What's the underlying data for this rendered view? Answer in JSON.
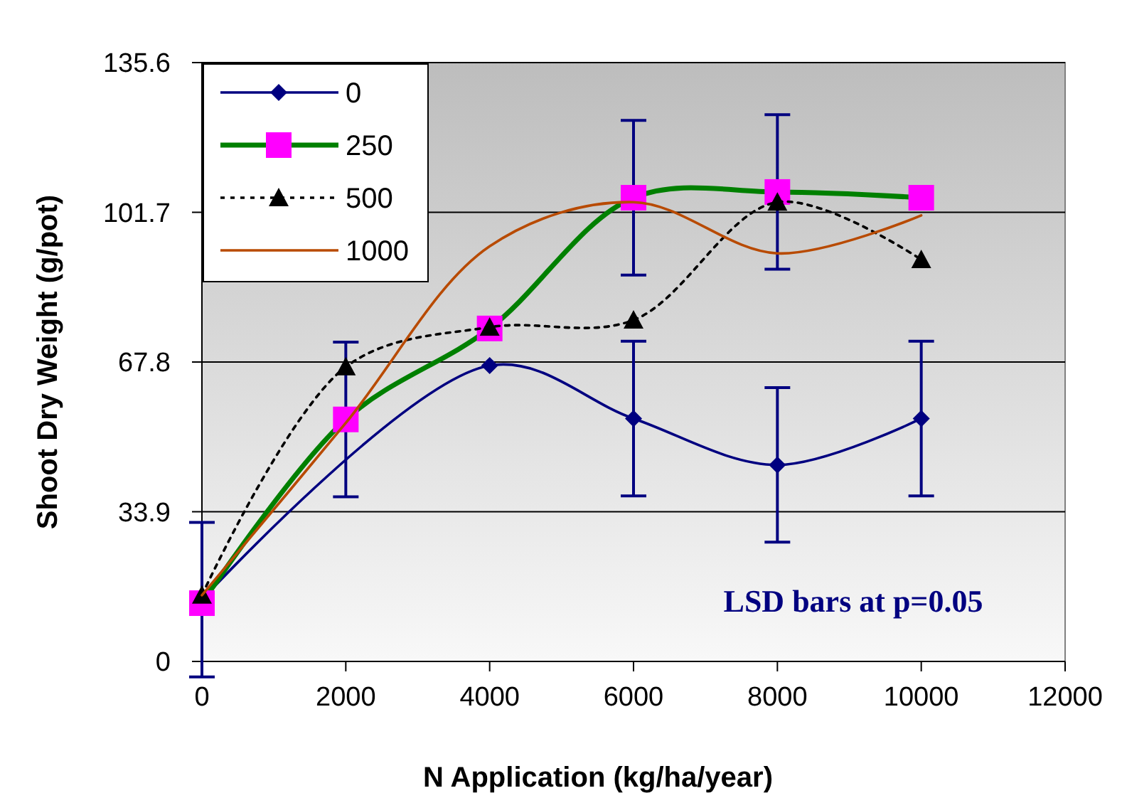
{
  "chart_data": {
    "type": "line",
    "xlabel": "N Application (kg/ha/year)",
    "ylabel": "Shoot Dry Weight (g/pot)",
    "x": [
      0,
      2000,
      4000,
      6000,
      8000,
      10000
    ],
    "xlim": [
      0,
      12000
    ],
    "xticks": [
      0,
      2000,
      4000,
      6000,
      8000,
      10000,
      12000
    ],
    "ylim": [
      0,
      135.6
    ],
    "yticks": [
      0,
      33.9,
      67.8,
      101.7,
      135.6
    ],
    "grid": "y",
    "legend": "top left",
    "series": [
      {
        "name": "0",
        "color": "#000080",
        "marker": "diamond",
        "line_style": "solid",
        "values": [
          14,
          null,
          67,
          55,
          44.5,
          55
        ],
        "errors": [
          17.5,
          null,
          null,
          17.5,
          17.5,
          17.5
        ]
      },
      {
        "name": "250",
        "color": "#008000",
        "marker": "square",
        "line_style": "solid",
        "values": [
          13.2,
          54.8,
          75.4,
          105,
          106.3,
          105
        ],
        "errors": [
          null,
          17.5,
          null,
          17.5,
          17.5,
          null
        ]
      },
      {
        "name": "500",
        "color": "#000000",
        "marker": "triangle",
        "line_style": "dotted",
        "values": [
          15,
          66.7,
          75.7,
          77.3,
          104,
          91
        ]
      },
      {
        "name": "1000",
        "color": "#b84a00",
        "marker": "none",
        "line_style": "solid",
        "values": [
          15,
          54,
          94,
          104,
          92.4,
          101
        ]
      }
    ],
    "annotations": [
      "LSD bars at p=0.05"
    ]
  }
}
